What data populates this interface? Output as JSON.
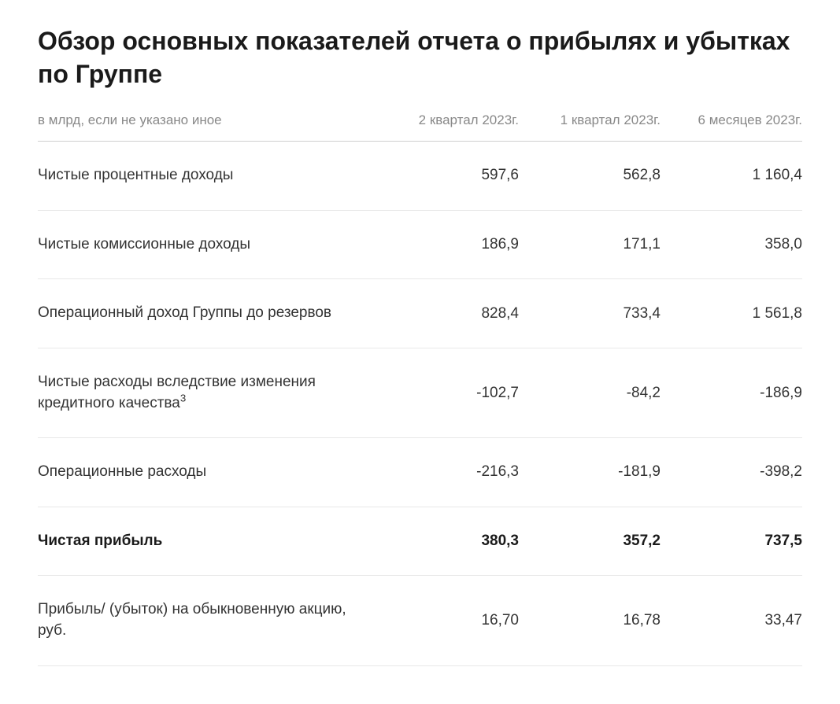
{
  "title": "Обзор основных показателей отчета о прибылях и убытках по Группе",
  "subtitle": "в млрд, если не указано иное",
  "columns": [
    "2 квартал 2023г.",
    "1 квартал 2023г.",
    "6 месяцев 2023г."
  ],
  "rows": [
    {
      "label": "Чистые процентные доходы",
      "sup": "",
      "values": [
        "597,6",
        "562,8",
        "1 160,4"
      ],
      "bold": false
    },
    {
      "label": "Чистые комиссионные доходы",
      "sup": "",
      "values": [
        "186,9",
        "171,1",
        "358,0"
      ],
      "bold": false
    },
    {
      "label": "Операционный доход Группы до резервов",
      "sup": "",
      "values": [
        "828,4",
        "733,4",
        "1 561,8"
      ],
      "bold": false
    },
    {
      "label": "Чистые расходы вследствие изменения кредитного качества",
      "sup": "3",
      "values": [
        "-102,7",
        "-84,2",
        "-186,9"
      ],
      "bold": false
    },
    {
      "label": "Операционные расходы",
      "sup": "",
      "values": [
        "-216,3",
        "-181,9",
        "-398,2"
      ],
      "bold": false
    },
    {
      "label": "Чистая прибыль",
      "sup": "",
      "values": [
        "380,3",
        "357,2",
        "737,5"
      ],
      "bold": true
    },
    {
      "label": "Прибыль/ (убыток) на обыкновенную акцию, руб.",
      "sup": "",
      "values": [
        "16,70",
        "16,78",
        "33,47"
      ],
      "bold": false
    }
  ],
  "styling": {
    "title_fontsize": 32,
    "title_color": "#1a1a1a",
    "header_fontsize": 17,
    "header_color": "#888888",
    "body_fontsize": 19,
    "body_color": "#333333",
    "header_border_color": "#d0d0d0",
    "row_border_color": "#e8e8e8",
    "background_color": "#ffffff",
    "label_col_width": 340,
    "value_col_width": 180
  }
}
